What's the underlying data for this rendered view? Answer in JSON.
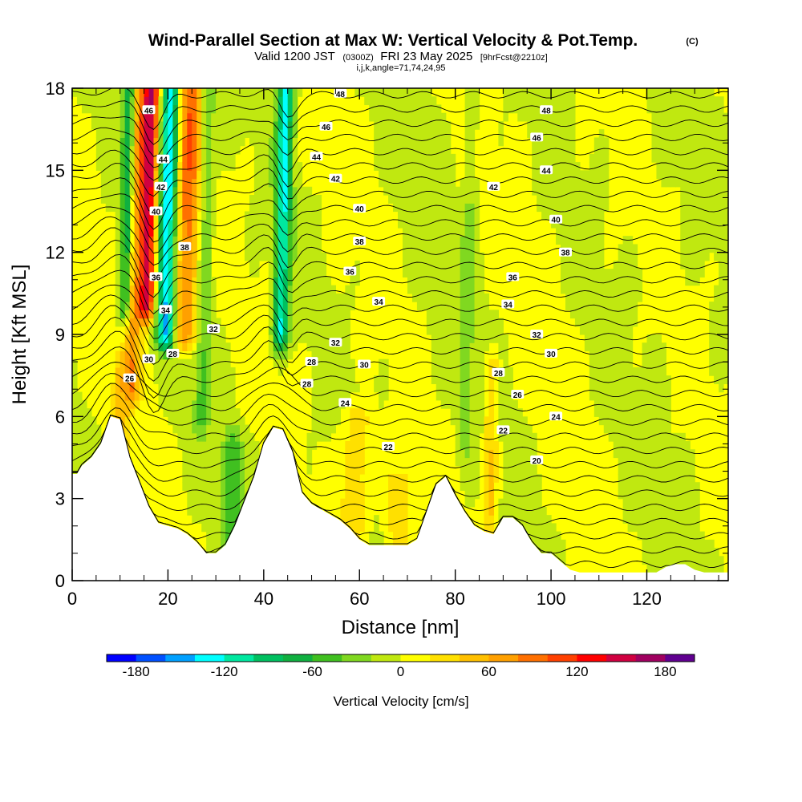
{
  "title": {
    "main": "Wind-Parallel Section at Max W: Vertical Velocity & Pot.Temp.",
    "copyright": "(C)",
    "valid_prefix": "Valid 1200 JST",
    "valid_utc": "(0300Z)",
    "valid_date": "FRI 23 May 2025",
    "forecast": "[9hrFcst@2210z]",
    "indices": "i,j,k,angle=71,74,24,95"
  },
  "chart_data": {
    "type": "heatmap",
    "title": "Wind-Parallel Section at Max W: Vertical Velocity & Pot.Temp.",
    "xlabel": "Distance [nm]",
    "ylabel": "Height [Kft MSL]",
    "xlim": [
      0,
      137
    ],
    "ylim": [
      0,
      18
    ],
    "x_ticks": [
      0,
      20,
      40,
      60,
      80,
      100,
      120
    ],
    "x_tick_labels": [
      "0",
      "20",
      "40",
      "60",
      "80",
      "100",
      "120"
    ],
    "y_ticks": [
      0,
      3,
      6,
      9,
      12,
      15,
      18
    ],
    "y_tick_labels": [
      "0",
      "3",
      "6",
      "9",
      "12",
      "15",
      "18"
    ],
    "colorbar": {
      "label": "Vertical Velocity [cm/s]",
      "min": -200,
      "max": 200,
      "ticks": [
        -180,
        -120,
        -60,
        0,
        60,
        120,
        180
      ],
      "tick_labels": [
        "-180",
        "-120",
        "-60",
        "0",
        "60",
        "120",
        "180"
      ],
      "colors": [
        "#0000ff",
        "#0050ff",
        "#00a0ff",
        "#00ffff",
        "#00e8a0",
        "#00c060",
        "#10b040",
        "#40c020",
        "#80d820",
        "#c0e810",
        "#ffff00",
        "#ffe000",
        "#ffc000",
        "#ffa000",
        "#ff7000",
        "#ff4000",
        "#ff0000",
        "#d00040",
        "#a00060",
        "#600090"
      ]
    },
    "terrain_kft": [
      [
        0,
        3.9
      ],
      [
        1,
        3.9
      ],
      [
        2,
        4.2
      ],
      [
        4,
        4.5
      ],
      [
        6,
        5
      ],
      [
        8,
        6
      ],
      [
        10,
        5.9
      ],
      [
        12,
        4.5
      ],
      [
        14,
        3.6
      ],
      [
        16,
        2.7
      ],
      [
        18,
        2.1
      ],
      [
        20,
        2
      ],
      [
        22,
        1.9
      ],
      [
        24,
        1.7
      ],
      [
        26,
        1.4
      ],
      [
        28,
        1
      ],
      [
        30,
        1
      ],
      [
        32,
        1.3
      ],
      [
        34,
        2
      ],
      [
        36,
        2.9
      ],
      [
        38,
        3.8
      ],
      [
        40,
        5
      ],
      [
        42,
        5.6
      ],
      [
        44,
        5.5
      ],
      [
        46,
        4.7
      ],
      [
        48,
        3.2
      ],
      [
        50,
        2.8
      ],
      [
        52,
        2.6
      ],
      [
        54,
        2.4
      ],
      [
        56,
        2.2
      ],
      [
        58,
        1.9
      ],
      [
        60,
        1.5
      ],
      [
        62,
        1.3
      ],
      [
        64,
        1.3
      ],
      [
        66,
        1.3
      ],
      [
        68,
        1.3
      ],
      [
        70,
        1.3
      ],
      [
        72,
        1.5
      ],
      [
        74,
        2.5
      ],
      [
        76,
        3.5
      ],
      [
        78,
        3.8
      ],
      [
        80,
        3.1
      ],
      [
        82,
        2.5
      ],
      [
        84,
        2
      ],
      [
        86,
        1.8
      ],
      [
        88,
        1.7
      ],
      [
        90,
        2.3
      ],
      [
        92,
        2.3
      ],
      [
        94,
        2
      ],
      [
        96,
        1.4
      ],
      [
        98,
        1
      ],
      [
        100,
        1
      ],
      [
        102,
        0.7
      ],
      [
        104,
        0.4
      ],
      [
        106,
        0.3
      ],
      [
        108,
        0.3
      ],
      [
        110,
        0.3
      ],
      [
        112,
        0.3
      ],
      [
        114,
        0.3
      ],
      [
        116,
        0.3
      ],
      [
        118,
        0.3
      ],
      [
        120,
        0.3
      ],
      [
        122,
        0.3
      ],
      [
        124,
        0.5
      ],
      [
        126,
        0.6
      ],
      [
        128,
        0.6
      ],
      [
        130,
        0.4
      ],
      [
        132,
        0.3
      ],
      [
        134,
        0.3
      ],
      [
        137,
        0.3
      ]
    ],
    "updraft_features": [
      {
        "x": 12.5,
        "y_base": 7,
        "y_top": 18,
        "width": 1.5,
        "value": 60
      },
      {
        "x": 15.5,
        "y_base": 10,
        "y_top": 18,
        "width": 1.8,
        "value": 160
      },
      {
        "x": 23.5,
        "y_base": 9,
        "y_top": 18,
        "width": 2.5,
        "value": 90
      },
      {
        "x": 87,
        "y_base": 2,
        "y_top": 8,
        "width": 1.5,
        "value": 45
      },
      {
        "x": 59,
        "y_base": 2,
        "y_top": 6,
        "width": 3,
        "value": 45
      },
      {
        "x": 68,
        "y_base": 1.3,
        "y_top": 3.5,
        "width": 3,
        "value": 40
      },
      {
        "x": 10,
        "y_base": 5,
        "y_top": 8,
        "width": 1.8,
        "value": 45
      }
    ],
    "downdraft_features": [
      {
        "x": 19.5,
        "y_base": 9,
        "y_top": 18,
        "width": 2.0,
        "value": -140
      },
      {
        "x": 11,
        "y_base": 10,
        "y_top": 18,
        "width": 1.2,
        "value": -80
      },
      {
        "x": 43.5,
        "y_base": 9,
        "y_top": 18,
        "width": 1.6,
        "value": -120
      },
      {
        "x": 27,
        "y_base": 6,
        "y_top": 18,
        "width": 1.6,
        "value": -40
      },
      {
        "x": 33,
        "y_base": 1.5,
        "y_top": 5,
        "width": 2,
        "value": -50
      },
      {
        "x": 82,
        "y_base": 5,
        "y_top": 18,
        "width": 1.5,
        "value": -25
      }
    ],
    "theta_contour_labels": [
      {
        "x": 16,
        "y": 17.2,
        "text": "46"
      },
      {
        "x": 19,
        "y": 15.4,
        "text": "44"
      },
      {
        "x": 18.5,
        "y": 14.4,
        "text": "42"
      },
      {
        "x": 17.5,
        "y": 13.5,
        "text": "40"
      },
      {
        "x": 23.5,
        "y": 12.2,
        "text": "38"
      },
      {
        "x": 17.5,
        "y": 11.1,
        "text": "36"
      },
      {
        "x": 19.5,
        "y": 9.9,
        "text": "34"
      },
      {
        "x": 29.5,
        "y": 9.2,
        "text": "32"
      },
      {
        "x": 16,
        "y": 8.1,
        "text": "30"
      },
      {
        "x": 21,
        "y": 8.3,
        "text": "28"
      },
      {
        "x": 12,
        "y": 7.4,
        "text": "26"
      },
      {
        "x": 56,
        "y": 17.8,
        "text": "48"
      },
      {
        "x": 53,
        "y": 16.6,
        "text": "46"
      },
      {
        "x": 51,
        "y": 15.5,
        "text": "44"
      },
      {
        "x": 55,
        "y": 14.7,
        "text": "42"
      },
      {
        "x": 60,
        "y": 13.6,
        "text": "40"
      },
      {
        "x": 60,
        "y": 12.4,
        "text": "38"
      },
      {
        "x": 58,
        "y": 11.3,
        "text": "36"
      },
      {
        "x": 64,
        "y": 10.2,
        "text": "34"
      },
      {
        "x": 55,
        "y": 8.7,
        "text": "32"
      },
      {
        "x": 61,
        "y": 7.9,
        "text": "30"
      },
      {
        "x": 50,
        "y": 8.0,
        "text": "28"
      },
      {
        "x": 49,
        "y": 7.2,
        "text": "28"
      },
      {
        "x": 57,
        "y": 6.5,
        "text": "24"
      },
      {
        "x": 66,
        "y": 4.9,
        "text": "22"
      },
      {
        "x": 99,
        "y": 17.2,
        "text": "48"
      },
      {
        "x": 97,
        "y": 16.2,
        "text": "46"
      },
      {
        "x": 99,
        "y": 15.0,
        "text": "44"
      },
      {
        "x": 88,
        "y": 14.4,
        "text": "42"
      },
      {
        "x": 101,
        "y": 13.2,
        "text": "40"
      },
      {
        "x": 103,
        "y": 12.0,
        "text": "38"
      },
      {
        "x": 92,
        "y": 11.1,
        "text": "36"
      },
      {
        "x": 91,
        "y": 10.1,
        "text": "34"
      },
      {
        "x": 97,
        "y": 9.0,
        "text": "32"
      },
      {
        "x": 100,
        "y": 8.3,
        "text": "30"
      },
      {
        "x": 89,
        "y": 7.6,
        "text": "28"
      },
      {
        "x": 93,
        "y": 6.8,
        "text": "26"
      },
      {
        "x": 101,
        "y": 6.0,
        "text": "24"
      },
      {
        "x": 90,
        "y": 5.5,
        "text": "22"
      },
      {
        "x": 97,
        "y": 4.4,
        "text": "20"
      }
    ]
  }
}
